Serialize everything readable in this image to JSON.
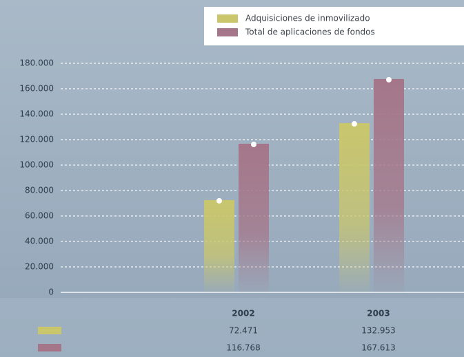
{
  "chart_data": {
    "type": "bar",
    "categories": [
      "2002",
      "2003"
    ],
    "series": [
      {
        "name": "Adquisiciones de inmovilizado",
        "color": "#c9c66c",
        "values": [
          72471,
          132953
        ],
        "value_labels": [
          "72.471",
          "132.953"
        ]
      },
      {
        "name": "Total de aplicaciones de fondos",
        "color": "#a57689",
        "values": [
          116768,
          167613
        ],
        "value_labels": [
          "116.768",
          "167.613"
        ]
      }
    ],
    "ylim": [
      0,
      180000
    ],
    "yticks": [
      0,
      {
        "value": 20000,
        "label": "20.000"
      },
      {
        "value": 40000,
        "label": "40.000"
      },
      {
        "value": 60000,
        "label": "60.000"
      },
      {
        "value": 80000,
        "label": "80.000"
      },
      {
        "value": 100000,
        "label": "100.000"
      },
      {
        "value": 120000,
        "label": "120.000"
      },
      {
        "value": 140000,
        "label": "140.000"
      },
      {
        "value": 160000,
        "label": "160.000"
      },
      {
        "value": 180000,
        "label": "180.000"
      }
    ],
    "grid": true,
    "legend": "upper right"
  }
}
